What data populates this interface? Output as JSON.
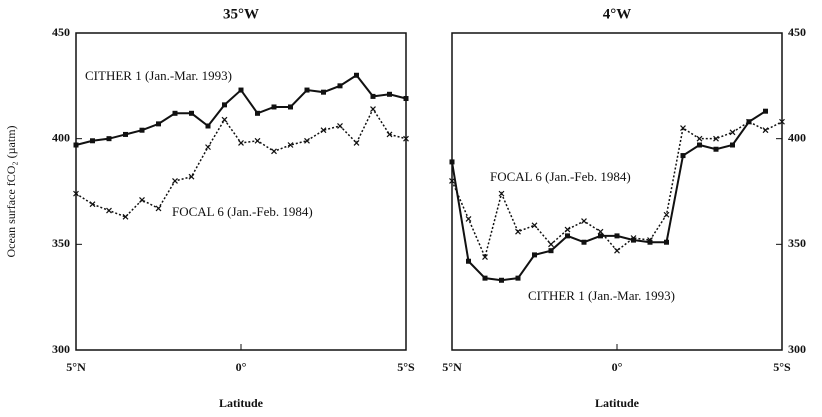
{
  "chart_data": [
    {
      "type": "line",
      "title": "35°W",
      "x_label": "Latitude",
      "y_label": "Ocean surface fCO₂ (µatm)",
      "y_axis_side": "left",
      "xlim": [
        5,
        -5
      ],
      "xticks": [
        {
          "value": 5,
          "label": "5°N"
        },
        {
          "value": 0,
          "label": "0°"
        },
        {
          "value": -5,
          "label": "5°S"
        }
      ],
      "ylim": [
        300,
        450
      ],
      "yticks": [
        300,
        350,
        400,
        450
      ],
      "series": [
        {
          "name": "CITHER 1 (Jan.-Mar. 1993)",
          "color": "#111111",
          "linestyle": "solid",
          "marker": "square",
          "x": [
            5,
            4.5,
            4,
            3.5,
            3,
            2.5,
            2,
            1.5,
            1,
            0.5,
            0,
            -0.5,
            -1,
            -1.5,
            -2,
            -2.5,
            -3,
            -3.5,
            -4,
            -4.5,
            -5
          ],
          "values": [
            397,
            399,
            400,
            402,
            404,
            407,
            412,
            412,
            406,
            416,
            423,
            412,
            415,
            415,
            423,
            422,
            425,
            430,
            420,
            421,
            419
          ]
        },
        {
          "name": "FOCAL 6 (Jan.-Feb. 1984)",
          "color": "#111111",
          "linestyle": "dotted",
          "marker": "x",
          "x": [
            5,
            4.5,
            4,
            3.5,
            3,
            2.5,
            2,
            1.5,
            1,
            0.5,
            0,
            -0.5,
            -1,
            -1.5,
            -2,
            -2.5,
            -3,
            -3.5,
            -4,
            -4.5,
            -5
          ],
          "values": [
            374,
            369,
            366,
            363,
            371,
            367,
            380,
            382,
            396,
            409,
            398,
            399,
            394,
            397,
            399,
            404,
            406,
            398,
            414,
            402,
            400
          ]
        }
      ]
    },
    {
      "type": "line",
      "title": "4°W",
      "x_label": "Latitude",
      "y_axis_side": "right",
      "xlim": [
        5,
        -5
      ],
      "xticks": [
        {
          "value": 5,
          "label": "5°N"
        },
        {
          "value": 0,
          "label": "0°"
        },
        {
          "value": -5,
          "label": "5°S"
        }
      ],
      "ylim": [
        300,
        450
      ],
      "yticks": [
        300,
        350,
        400,
        450
      ],
      "series": [
        {
          "name": "CITHER 1 (Jan.-Mar. 1993)",
          "color": "#111111",
          "linestyle": "solid",
          "marker": "square",
          "x": [
            5,
            4.5,
            4,
            3.5,
            3,
            2.5,
            2,
            1.5,
            1,
            0.5,
            0,
            -0.5,
            -1,
            -1.5,
            -2,
            -2.5,
            -3,
            -3.5,
            -4,
            -4.5
          ],
          "values": [
            389,
            342,
            334,
            333,
            334,
            345,
            347,
            354,
            351,
            354,
            354,
            352,
            351,
            351,
            392,
            397,
            395,
            397,
            408,
            413
          ]
        },
        {
          "name": "FOCAL 6 (Jan.-Feb. 1984)",
          "color": "#111111",
          "linestyle": "dotted",
          "marker": "x",
          "x": [
            5,
            4.5,
            4,
            3.5,
            3,
            2.5,
            2,
            1.5,
            1,
            0.5,
            0,
            -0.5,
            -1,
            -1.5,
            -2,
            -2.5,
            -3,
            -3.5,
            -4,
            -4.5,
            -5
          ],
          "values": [
            380,
            362,
            344,
            374,
            356,
            359,
            350,
            357,
            361,
            356,
            347,
            353,
            352,
            364,
            405,
            400,
            400,
            403,
            408,
            404,
            408
          ]
        }
      ]
    }
  ]
}
